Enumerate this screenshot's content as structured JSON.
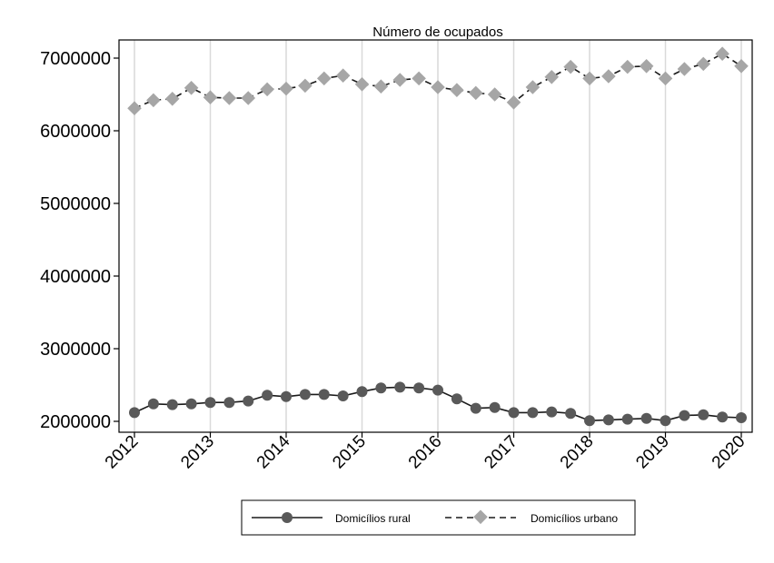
{
  "chart_data": {
    "type": "line",
    "title": "Número de ocupados",
    "xlabel": "",
    "ylabel": "",
    "x_ticks": [
      "2012",
      "2013",
      "2014",
      "2015",
      "2016",
      "2017",
      "2018",
      "2019",
      "2020"
    ],
    "y_ticks": [
      "2000000",
      "3000000",
      "4000000",
      "5000000",
      "6000000",
      "7000000"
    ],
    "ylim": [
      1850000,
      7250000
    ],
    "x_range": [
      "2012Q1",
      "2020Q1"
    ],
    "grid": "vertical at year ticks",
    "legend_position": "bottom",
    "x": [
      "2012Q1",
      "2012Q2",
      "2012Q3",
      "2012Q4",
      "2013Q1",
      "2013Q2",
      "2013Q3",
      "2013Q4",
      "2014Q1",
      "2014Q2",
      "2014Q3",
      "2014Q4",
      "2015Q1",
      "2015Q2",
      "2015Q3",
      "2015Q4",
      "2016Q1",
      "2016Q2",
      "2016Q3",
      "2016Q4",
      "2017Q1",
      "2017Q2",
      "2017Q3",
      "2017Q4",
      "2018Q1",
      "2018Q2",
      "2018Q3",
      "2018Q4",
      "2019Q1",
      "2019Q2",
      "2019Q3",
      "2019Q4",
      "2020Q1"
    ],
    "series": [
      {
        "name": "Domicílios rural",
        "color": "#1a1a1a",
        "marker": "circle",
        "dash": "solid",
        "marker_color": "#595959",
        "values": [
          2120000,
          2240000,
          2230000,
          2240000,
          2260000,
          2260000,
          2280000,
          2360000,
          2340000,
          2370000,
          2370000,
          2350000,
          2410000,
          2460000,
          2470000,
          2460000,
          2430000,
          2310000,
          2180000,
          2190000,
          2120000,
          2120000,
          2130000,
          2110000,
          2010000,
          2020000,
          2030000,
          2040000,
          2010000,
          2080000,
          2090000,
          2060000,
          2050000
        ]
      },
      {
        "name": "Domicílios urbano",
        "color": "#1a1a1a",
        "marker": "diamond",
        "dash": "dashed",
        "marker_color": "#a6a6a6",
        "values": [
          6310000,
          6420000,
          6440000,
          6590000,
          6460000,
          6450000,
          6450000,
          6570000,
          6580000,
          6620000,
          6720000,
          6760000,
          6640000,
          6610000,
          6700000,
          6720000,
          6600000,
          6560000,
          6520000,
          6500000,
          6390000,
          6600000,
          6740000,
          6880000,
          6720000,
          6750000,
          6880000,
          6890000,
          6720000,
          6850000,
          6920000,
          7060000,
          6890000
        ]
      }
    ]
  }
}
